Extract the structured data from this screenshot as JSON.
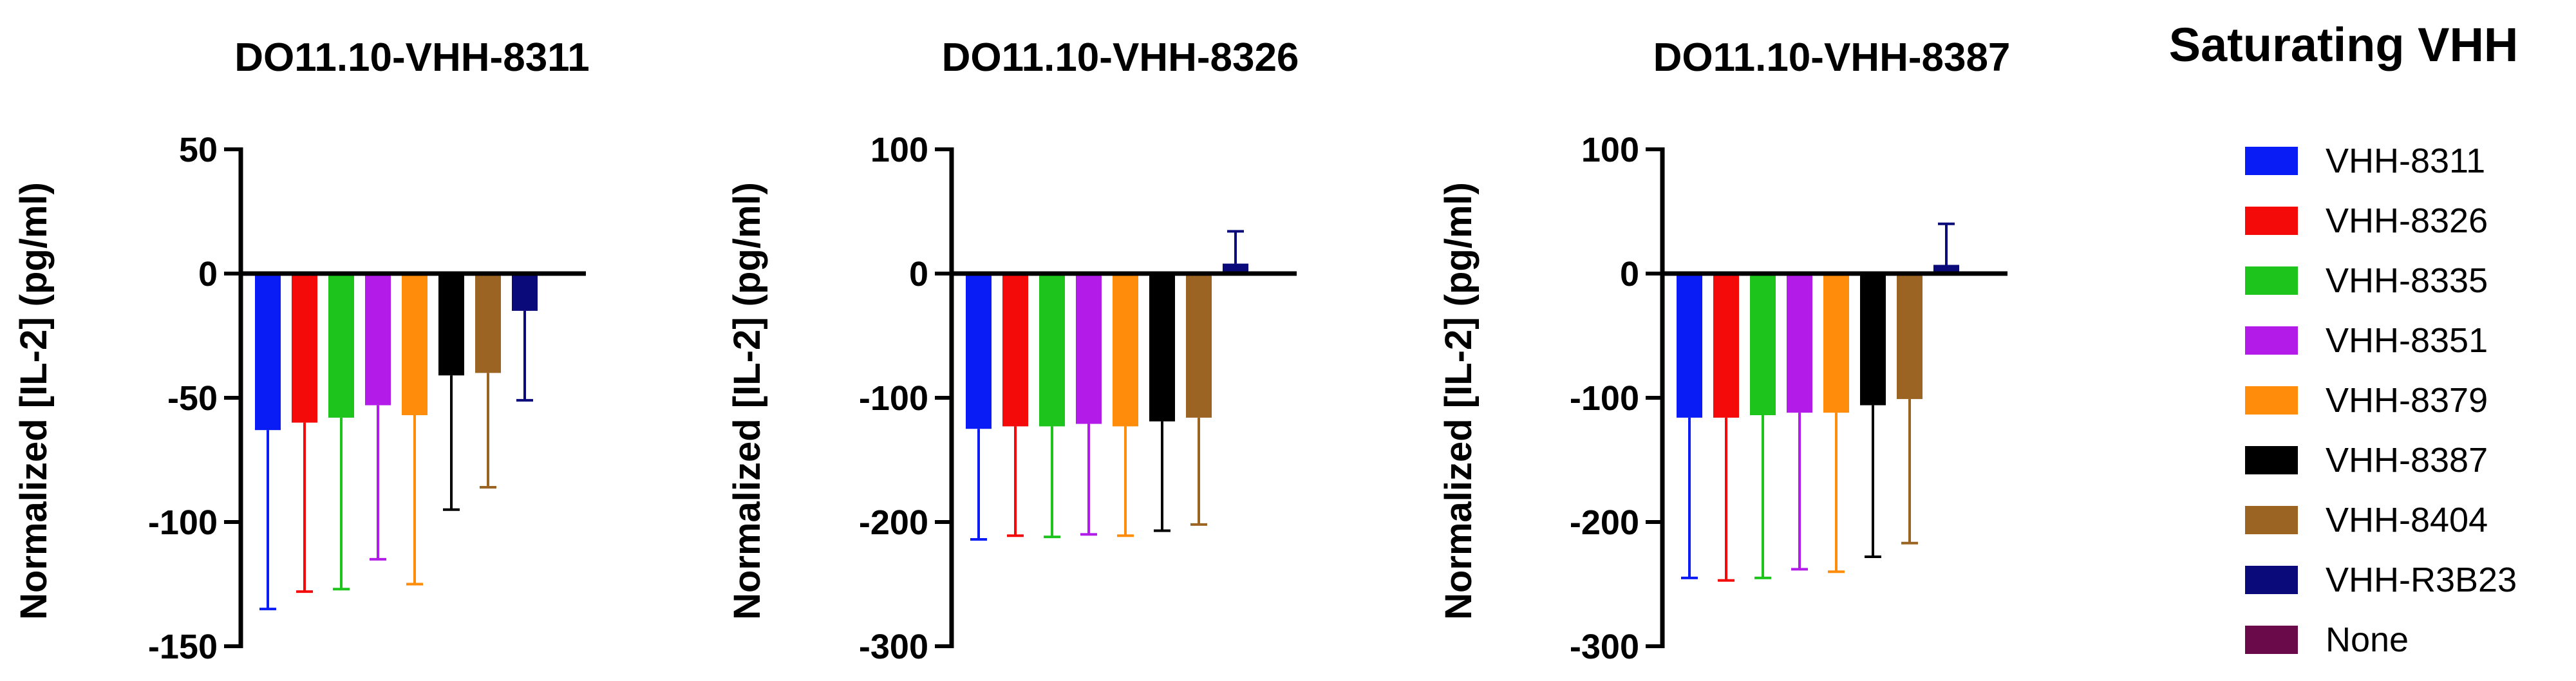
{
  "legend": {
    "title": "Saturating VHH",
    "entries": [
      {
        "name": "VHH-8311",
        "color": "#0a1cf5"
      },
      {
        "name": "VHH-8326",
        "color": "#f50a0a"
      },
      {
        "name": "VHH-8335",
        "color": "#1cc41c"
      },
      {
        "name": "VHH-8351",
        "color": "#b21be8"
      },
      {
        "name": "VHH-8379",
        "color": "#ff8c0a"
      },
      {
        "name": "VHH-8387",
        "color": "#000000"
      },
      {
        "name": "VHH-8404",
        "color": "#9c6423"
      },
      {
        "name": "VHH-R3B23",
        "color": "#0a0a7a"
      },
      {
        "name": "None",
        "color": "#6b0a4a"
      }
    ]
  },
  "chart_data": [
    {
      "type": "bar",
      "title": "DO11.10-VHH-8311",
      "ylabel": "Normalized [IL-2] (pg/ml)",
      "ylim": [
        -150,
        50
      ],
      "yticks": [
        50,
        0,
        -50,
        -100,
        -150
      ],
      "categories": [
        "VHH-8311",
        "VHH-8326",
        "VHH-8335",
        "VHH-8351",
        "VHH-8379",
        "VHH-8387",
        "VHH-8404",
        "VHH-R3B23"
      ],
      "values": [
        -63,
        -60,
        -58,
        -53,
        -57,
        -41,
        -40,
        -15
      ],
      "error_bars": [
        -135,
        -128,
        -127,
        -115,
        -125,
        -95,
        -86,
        -51
      ]
    },
    {
      "type": "bar",
      "title": "DO11.10-VHH-8326",
      "ylabel": "Normalized [IL-2] (pg/ml)",
      "ylim": [
        -300,
        100
      ],
      "yticks": [
        100,
        0,
        -100,
        -200,
        -300
      ],
      "categories": [
        "VHH-8311",
        "VHH-8326",
        "VHH-8335",
        "VHH-8351",
        "VHH-8379",
        "VHH-8387",
        "VHH-8404",
        "VHH-R3B23"
      ],
      "values": [
        -125,
        -123,
        -123,
        -121,
        -123,
        -119,
        -116,
        8
      ],
      "error_bars": [
        -214,
        -211,
        -212,
        -210,
        -211,
        -207,
        -202,
        34
      ]
    },
    {
      "type": "bar",
      "title": "DO11.10-VHH-8387",
      "ylabel": "Normalized [IL-2] (pg/ml)",
      "ylim": [
        -300,
        100
      ],
      "yticks": [
        100,
        0,
        -100,
        -200,
        -300
      ],
      "categories": [
        "VHH-8311",
        "VHH-8326",
        "VHH-8335",
        "VHH-8351",
        "VHH-8379",
        "VHH-8387",
        "VHH-8404",
        "VHH-R3B23"
      ],
      "values": [
        -116,
        -116,
        -114,
        -112,
        -112,
        -106,
        -101,
        7
      ],
      "error_bars": [
        -245,
        -247,
        -245,
        -238,
        -240,
        -228,
        -217,
        40
      ]
    }
  ]
}
